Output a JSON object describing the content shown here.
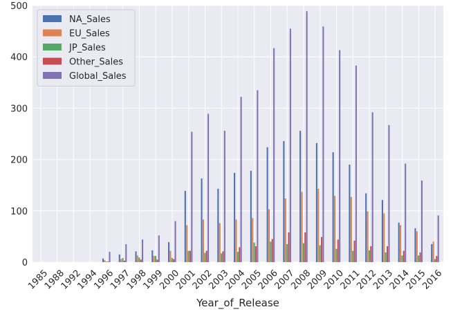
{
  "chart_data": {
    "type": "bar",
    "title": "",
    "xlabel": "Year_of_Release",
    "ylabel": "",
    "ylim": [
      0,
      500
    ],
    "yticks": [
      0,
      100,
      200,
      300,
      400,
      500
    ],
    "grid": true,
    "legend_position": "top-left",
    "categories": [
      "1985",
      "1988",
      "1992",
      "1994",
      "1996",
      "1997",
      "1998",
      "1999",
      "2000",
      "2001",
      "2002",
      "2003",
      "2004",
      "2005",
      "2006",
      "2007",
      "2008",
      "2009",
      "2010",
      "2011",
      "2012",
      "2013",
      "2014",
      "2015",
      "2016"
    ],
    "series": [
      {
        "name": "NA_Sales",
        "color": "#4c72b0",
        "values": [
          0.0,
          0.0,
          0.0,
          0.0,
          7,
          15,
          21,
          23,
          39,
          139,
          163,
          143,
          174,
          178,
          224,
          236,
          256,
          232,
          214,
          190,
          134,
          121,
          77,
          66,
          35
        ]
      },
      {
        "name": "EU_Sales",
        "color": "#dd8452",
        "values": [
          0.0,
          0.0,
          0.0,
          0.0,
          4,
          6,
          13,
          12,
          22,
          72,
          83,
          76,
          83,
          86,
          103,
          124,
          137,
          143,
          129,
          127,
          99,
          95,
          72,
          60,
          40
        ]
      },
      {
        "name": "JP_Sales",
        "color": "#55a868",
        "values": [
          0.0,
          0.0,
          0.0,
          0.0,
          1,
          8,
          9,
          12,
          8,
          22,
          18,
          17,
          20,
          38,
          40,
          35,
          37,
          33,
          26,
          22,
          23,
          19,
          13,
          13,
          6
        ]
      },
      {
        "name": "Other_Sales",
        "color": "#c44e52",
        "values": [
          0.0,
          0.0,
          0.0,
          0.0,
          1,
          3,
          5,
          5,
          6,
          22,
          22,
          21,
          29,
          31,
          45,
          58,
          58,
          49,
          44,
          42,
          31,
          31,
          22,
          19,
          12
        ]
      },
      {
        "name": "Global_Sales",
        "color": "#8172b3",
        "values": [
          0.0,
          0.0,
          0.0,
          0.0,
          20,
          35,
          44,
          52,
          80,
          254,
          289,
          256,
          322,
          335,
          417,
          455,
          489,
          459,
          413,
          383,
          292,
          267,
          192,
          159,
          91
        ]
      }
    ]
  }
}
